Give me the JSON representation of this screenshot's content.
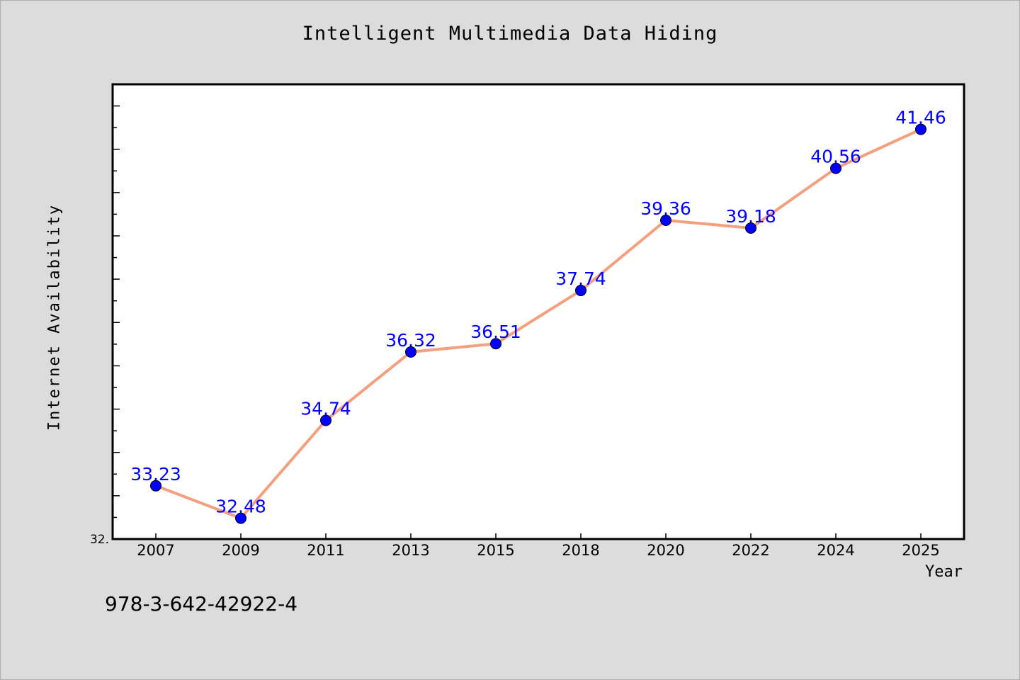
{
  "chart_data": {
    "type": "line",
    "title": "Intelligent Multimedia Data Hiding",
    "xlabel": "Year",
    "ylabel": "Internet Availability",
    "categories": [
      "2007",
      "2009",
      "2011",
      "2013",
      "2015",
      "2018",
      "2020",
      "2022",
      "2024",
      "2025"
    ],
    "series": [
      {
        "values": [
          33.23,
          32.48,
          34.74,
          36.32,
          36.51,
          37.74,
          39.36,
          39.18,
          40.56,
          41.46
        ]
      }
    ],
    "ylim": [
      32.0,
      42.5
    ],
    "y_tick_label": "32.",
    "grid": false,
    "colors": {
      "line": "#f4a07f",
      "marker": "#0000ff",
      "data_label": "#0000ff"
    }
  },
  "footnote": "978-3-642-42922-4"
}
